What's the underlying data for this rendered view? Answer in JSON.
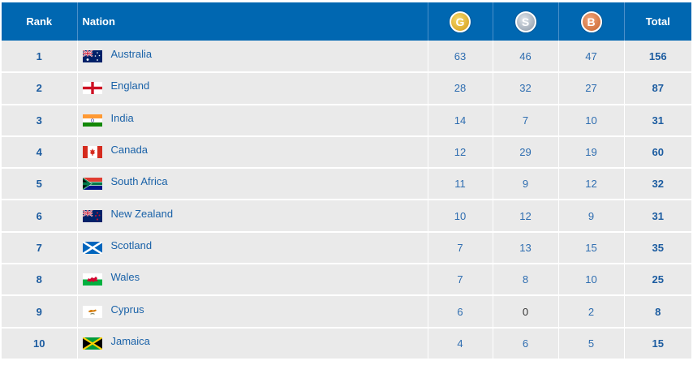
{
  "header": {
    "rank": "Rank",
    "nation": "Nation",
    "gold": "G",
    "silver": "S",
    "bronze": "B",
    "total": "Total"
  },
  "colors": {
    "header_bg": "#0067b1",
    "row_bg": "#eaeaea",
    "gold": "#e0ad2a",
    "silver": "#9aa6b4",
    "bronze": "#d4733c"
  },
  "rows": [
    {
      "rank": "1",
      "nation": "Australia",
      "flag": "australia-flag-icon",
      "gold": "63",
      "silver": "46",
      "bronze": "47",
      "total": "156"
    },
    {
      "rank": "2",
      "nation": "England",
      "flag": "england-flag-icon",
      "gold": "28",
      "silver": "32",
      "bronze": "27",
      "total": "87"
    },
    {
      "rank": "3",
      "nation": "India",
      "flag": "india-flag-icon",
      "gold": "14",
      "silver": "7",
      "bronze": "10",
      "total": "31"
    },
    {
      "rank": "4",
      "nation": "Canada",
      "flag": "canada-flag-icon",
      "gold": "12",
      "silver": "29",
      "bronze": "19",
      "total": "60"
    },
    {
      "rank": "5",
      "nation": "South Africa",
      "flag": "south-africa-flag-icon",
      "gold": "11",
      "silver": "9",
      "bronze": "12",
      "total": "32"
    },
    {
      "rank": "6",
      "nation": "New Zealand",
      "flag": "new-zealand-flag-icon",
      "gold": "10",
      "silver": "12",
      "bronze": "9",
      "total": "31"
    },
    {
      "rank": "7",
      "nation": "Scotland",
      "flag": "scotland-flag-icon",
      "gold": "7",
      "silver": "13",
      "bronze": "15",
      "total": "35"
    },
    {
      "rank": "8",
      "nation": "Wales",
      "flag": "wales-flag-icon",
      "gold": "7",
      "silver": "8",
      "bronze": "10",
      "total": "25"
    },
    {
      "rank": "9",
      "nation": "Cyprus",
      "flag": "cyprus-flag-icon",
      "gold": "6",
      "silver": "0",
      "bronze": "2",
      "total": "8"
    },
    {
      "rank": "10",
      "nation": "Jamaica",
      "flag": "jamaica-flag-icon",
      "gold": "4",
      "silver": "6",
      "bronze": "5",
      "total": "15"
    }
  ]
}
